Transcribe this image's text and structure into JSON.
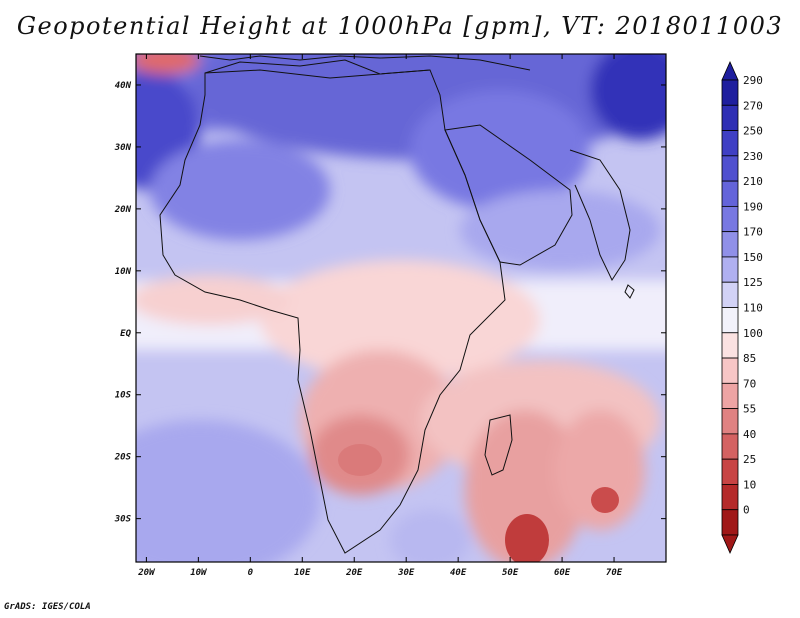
{
  "title": "Geopotential Height at 1000hPa [gpm], VT: 2018011003",
  "credit": "GrADS: IGES/COLA",
  "map": {
    "lon_range": [
      -22,
      80
    ],
    "lat_range": [
      -37,
      45
    ],
    "x_ticks": [
      {
        "lon": -20,
        "label": "20W"
      },
      {
        "lon": -10,
        "label": "10W"
      },
      {
        "lon": 0,
        "label": "0"
      },
      {
        "lon": 10,
        "label": "10E"
      },
      {
        "lon": 20,
        "label": "20E"
      },
      {
        "lon": 30,
        "label": "30E"
      },
      {
        "lon": 40,
        "label": "40E"
      },
      {
        "lon": 50,
        "label": "50E"
      },
      {
        "lon": 60,
        "label": "60E"
      },
      {
        "lon": 70,
        "label": "70E"
      }
    ],
    "y_ticks": [
      {
        "lat": 40,
        "label": "40N"
      },
      {
        "lat": 30,
        "label": "30N"
      },
      {
        "lat": 20,
        "label": "20N"
      },
      {
        "lat": 10,
        "label": "10N"
      },
      {
        "lat": 0,
        "label": "EQ"
      },
      {
        "lat": -10,
        "label": "10S"
      },
      {
        "lat": -20,
        "label": "20S"
      },
      {
        "lat": -30,
        "label": "30S"
      }
    ]
  },
  "colorbar": {
    "labels": [
      "290",
      "270",
      "250",
      "230",
      "210",
      "190",
      "170",
      "150",
      "125",
      "110",
      "100",
      "85",
      "70",
      "55",
      "40",
      "25",
      "10",
      "0"
    ],
    "colors": [
      "#1e1e9e",
      "#2e2eb4",
      "#3f3fc4",
      "#5050cf",
      "#6464da",
      "#7878e2",
      "#9090e8",
      "#b0b0f0",
      "#d2d2f6",
      "#f2f2fb",
      "#fbe2e2",
      "#f7c6c6",
      "#eda4a4",
      "#e08282",
      "#d46262",
      "#c84444",
      "#b52a2a",
      "#a01818"
    ]
  },
  "chart_data": {
    "type": "heatmap",
    "title": "Geopotential Height at 1000hPa [gpm], VT: 2018011003",
    "units": "gpm",
    "levels": [
      0,
      10,
      25,
      40,
      55,
      70,
      85,
      100,
      110,
      125,
      150,
      170,
      190,
      210,
      230,
      250,
      270,
      290
    ],
    "features": [
      {
        "name": "low-madagascar-south",
        "lon": 52,
        "lat": -34,
        "value": 0
      },
      {
        "name": "low-east-indian-ocean",
        "lon": 68,
        "lat": -27,
        "value": 25
      },
      {
        "name": "low-southern-africa",
        "lon": 24,
        "lat": -22,
        "value": 55
      },
      {
        "name": "low-northwest-atlantic",
        "lon": -14,
        "lat": 44,
        "value": 70
      },
      {
        "name": "high-iran",
        "lon": 50,
        "lat": 34,
        "value": 230
      },
      {
        "name": "high-far-east",
        "lon": 78,
        "lat": 40,
        "value": 290
      },
      {
        "name": "high-north-atlantic",
        "lon": -22,
        "lat": 28,
        "value": 230
      }
    ]
  }
}
